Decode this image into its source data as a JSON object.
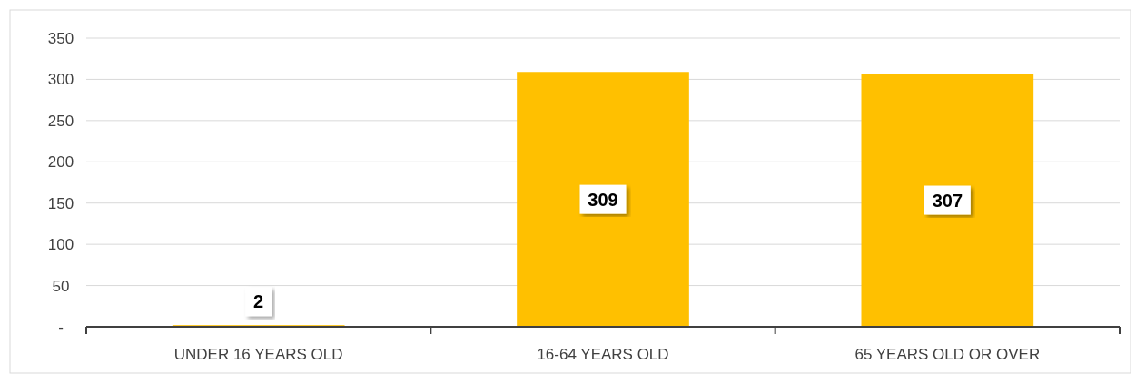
{
  "chart_data": {
    "type": "bar",
    "categories": [
      "UNDER 16 YEARS OLD",
      "16-64 YEARS OLD",
      "65 YEARS OLD OR OVER"
    ],
    "values": [
      2,
      309,
      307
    ],
    "color": "#ffc000",
    "ylim": [
      0,
      350
    ],
    "yticks": [
      {
        "value": 0,
        "label": "-"
      },
      50,
      100,
      150,
      200,
      250,
      300,
      350
    ],
    "grid": "y",
    "data_labels": true
  }
}
